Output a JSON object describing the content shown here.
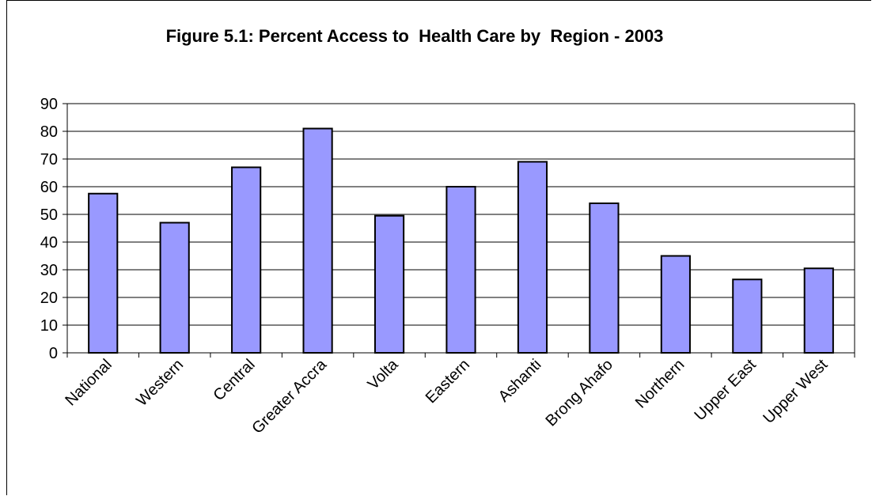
{
  "chart_data": {
    "type": "bar",
    "title": "Figure 5.1: Percent Access to  Health Care by  Region - 2003",
    "xlabel": "",
    "ylabel": "",
    "categories": [
      "National",
      "Western",
      "Central",
      "Greater Accra",
      "Volta",
      "Eastern",
      "Ashanti",
      "Brong Ahafo",
      "Northern",
      "Upper East",
      "Upper West"
    ],
    "values": [
      57.5,
      47,
      67,
      81,
      49.5,
      60,
      69,
      54,
      35,
      26.5,
      30.5
    ],
    "ylim": [
      0,
      90
    ],
    "yticks": [
      "0",
      "10",
      "20",
      "30",
      "40",
      "50",
      "60",
      "70",
      "80",
      "90"
    ],
    "grid": true,
    "legend": "none",
    "colors": {
      "bar_fill": "#9999ff",
      "bar_stroke": "#000000",
      "gridline": "#000000"
    }
  }
}
